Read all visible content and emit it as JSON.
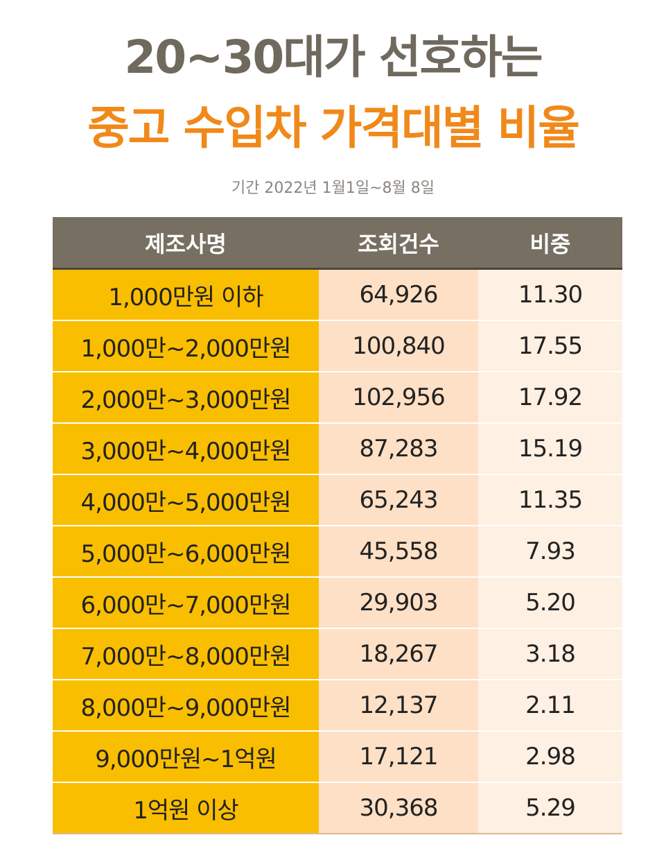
{
  "title_line1": "20~30대가 선호하는",
  "title_line2": "중고 수입차 가격대별 비율",
  "period": "기간 2022년 1월1일~8월 8일",
  "colors": {
    "header_bg": "#776f62",
    "range_col": "#f9be00",
    "count_col": "#fde0c6",
    "share_col": "#fef0e2",
    "title_gray": "#6f695e",
    "title_orange": "#f0891a"
  },
  "chart_data": {
    "type": "table",
    "columns": [
      "제조사명",
      "조회건수",
      "비중"
    ],
    "rows": [
      [
        "1,000만원 이하",
        "64,926",
        "11.30"
      ],
      [
        "1,000만~2,000만원",
        "100,840",
        "17.55"
      ],
      [
        "2,000만~3,000만원",
        "102,956",
        "17.92"
      ],
      [
        "3,000만~4,000만원",
        "87,283",
        "15.19"
      ],
      [
        "4,000만~5,000만원",
        "65,243",
        "11.35"
      ],
      [
        "5,000만~6,000만원",
        "45,558",
        "7.93"
      ],
      [
        "6,000만~7,000만원",
        "29,903",
        "5.20"
      ],
      [
        "7,000만~8,000만원",
        "18,267",
        "3.18"
      ],
      [
        "8,000만~9,000만원",
        "12,137",
        "2.11"
      ],
      [
        "9,000만원~1억원",
        "17,121",
        "2.98"
      ],
      [
        "1억원 이상",
        "30,368",
        "5.29"
      ]
    ]
  }
}
